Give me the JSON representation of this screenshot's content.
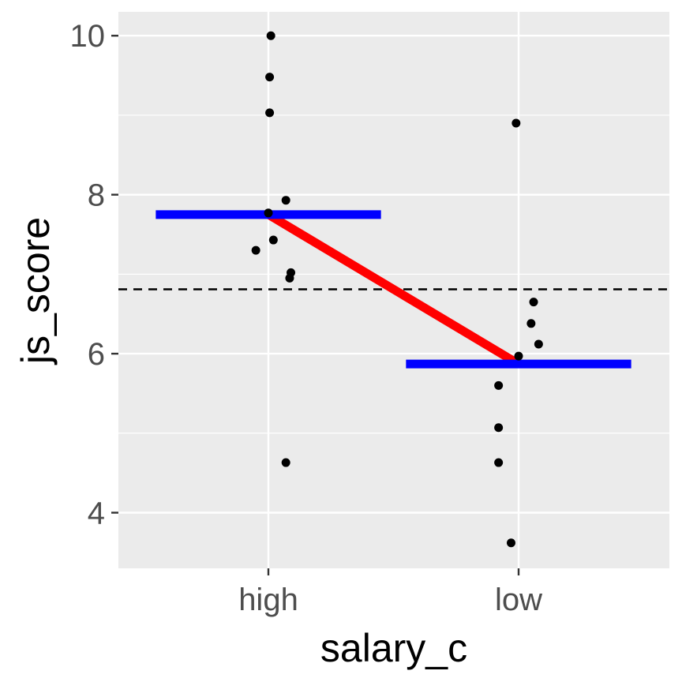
{
  "chart_data": {
    "type": "scatter",
    "xlabel": "salary_c",
    "ylabel": "js_score",
    "categories": [
      "high",
      "low"
    ],
    "ylim": [
      3.3,
      10.3
    ],
    "yticks": [
      4,
      6,
      8,
      10
    ],
    "grid": true,
    "background": "#ebebeb",
    "colors": {
      "points": "#000000",
      "group_mean": "#0000ff",
      "mean_connector": "#ff0000",
      "overall_mean": "#000000"
    },
    "points": [
      {
        "category": "high",
        "offset": 0.01,
        "y": 10.0
      },
      {
        "category": "high",
        "offset": 0.005,
        "y": 9.48
      },
      {
        "category": "high",
        "offset": 0.005,
        "y": 9.03
      },
      {
        "category": "high",
        "offset": 0.07,
        "y": 7.93
      },
      {
        "category": "high",
        "offset": 0.0,
        "y": 7.77
      },
      {
        "category": "high",
        "offset": 0.02,
        "y": 7.43
      },
      {
        "category": "high",
        "offset": -0.05,
        "y": 7.3
      },
      {
        "category": "high",
        "offset": 0.09,
        "y": 7.02
      },
      {
        "category": "high",
        "offset": 0.085,
        "y": 6.95
      },
      {
        "category": "high",
        "offset": 0.07,
        "y": 4.63
      },
      {
        "category": "low",
        "offset": -0.01,
        "y": 8.9
      },
      {
        "category": "low",
        "offset": 0.06,
        "y": 6.65
      },
      {
        "category": "low",
        "offset": 0.05,
        "y": 6.38
      },
      {
        "category": "low",
        "offset": 0.08,
        "y": 6.12
      },
      {
        "category": "low",
        "offset": 0.0,
        "y": 5.97
      },
      {
        "category": "low",
        "offset": -0.08,
        "y": 5.6
      },
      {
        "category": "low",
        "offset": -0.08,
        "y": 5.07
      },
      {
        "category": "low",
        "offset": -0.08,
        "y": 4.63
      },
      {
        "category": "low",
        "offset": -0.03,
        "y": 3.62
      }
    ],
    "group_means": [
      {
        "category": "high",
        "y": 7.75
      },
      {
        "category": "low",
        "y": 5.87
      }
    ],
    "overall_mean": 6.81
  }
}
